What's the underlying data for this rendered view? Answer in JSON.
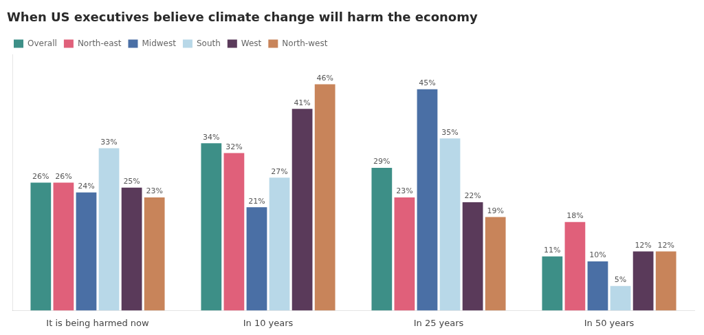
{
  "chart_data": {
    "type": "bar",
    "title": "When US executives believe climate change will harm the economy",
    "categories": [
      "It is being harmed now",
      "In 10 years",
      "In 25 years",
      "In 50 years"
    ],
    "series": [
      {
        "name": "Overall",
        "color": "#3d8f87",
        "values": [
          26,
          34,
          29,
          11
        ],
        "value_labels": [
          "26%",
          "34%",
          "29%",
          "11%"
        ]
      },
      {
        "name": "North-east",
        "color": "#e0607a",
        "values": [
          26,
          32,
          23,
          18
        ],
        "value_labels": [
          "26%",
          "32%",
          "23%",
          "18%"
        ]
      },
      {
        "name": "Midwest",
        "color": "#4a6fa5",
        "values": [
          24,
          21,
          45,
          10
        ],
        "value_labels": [
          "24%",
          "21%",
          "45%",
          "10%"
        ]
      },
      {
        "name": "South",
        "color": "#b8d8e8",
        "values": [
          33,
          27,
          35,
          5
        ],
        "value_labels": [
          "33%",
          "27%",
          "35%",
          "5%"
        ]
      },
      {
        "name": "West",
        "color": "#5a3a5a",
        "values": [
          25,
          41,
          22,
          12
        ],
        "value_labels": [
          "25%",
          "41%",
          "22%",
          "12%"
        ]
      },
      {
        "name": "North-west",
        "color": "#c8845a",
        "values": [
          23,
          46,
          19,
          12
        ],
        "value_labels": [
          "23%",
          "46%",
          "19%",
          "12%"
        ]
      }
    ],
    "ylim": [
      0,
      52
    ],
    "grid": false,
    "legend": "upper left",
    "data_labels": true,
    "tick_labels": "x"
  }
}
